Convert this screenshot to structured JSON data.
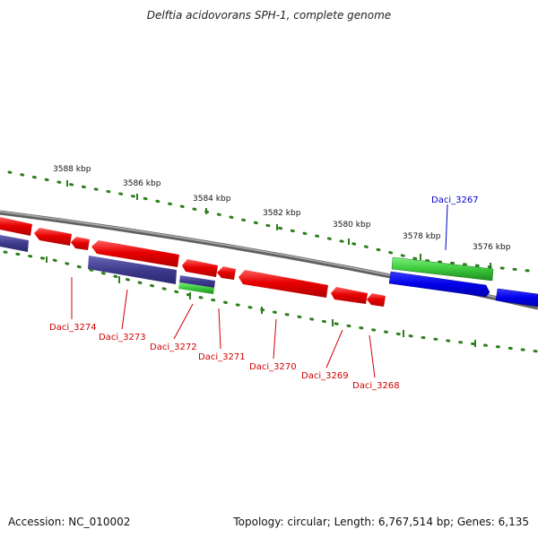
{
  "title": "Delftia acidovorans SPH-1, complete genome",
  "footer": {
    "accession": "Accession: NC_010002",
    "summary": "Topology: circular; Length: 6,767,514 bp; Genes: 6,135"
  },
  "scale_labels": [
    "3588 kbp",
    "3586 kbp",
    "3584 kbp",
    "3582 kbp",
    "3580 kbp",
    "3578 kbp",
    "3576 kbp"
  ],
  "colors": {
    "backbone": "#808080",
    "ruler": "#2e7d1e",
    "forward_gene": "#0000e8",
    "forward_label": "#0000c8",
    "reverse_gene": "#e60000",
    "reverse_label": "#d00000",
    "rna_gene": "#3e3a8c",
    "green_gene": "#3cc83c"
  },
  "genes": [
    {
      "label": "Daci_3267",
      "strand": "forward"
    },
    {
      "label": "Daci_3268",
      "strand": "reverse"
    },
    {
      "label": "Daci_3269",
      "strand": "reverse"
    },
    {
      "label": "Daci_3270",
      "strand": "reverse"
    },
    {
      "label": "Daci_3271",
      "strand": "reverse"
    },
    {
      "label": "Daci_3272",
      "strand": "reverse"
    },
    {
      "label": "Daci_3273",
      "strand": "reverse"
    },
    {
      "label": "Daci_3274",
      "strand": "reverse"
    }
  ]
}
